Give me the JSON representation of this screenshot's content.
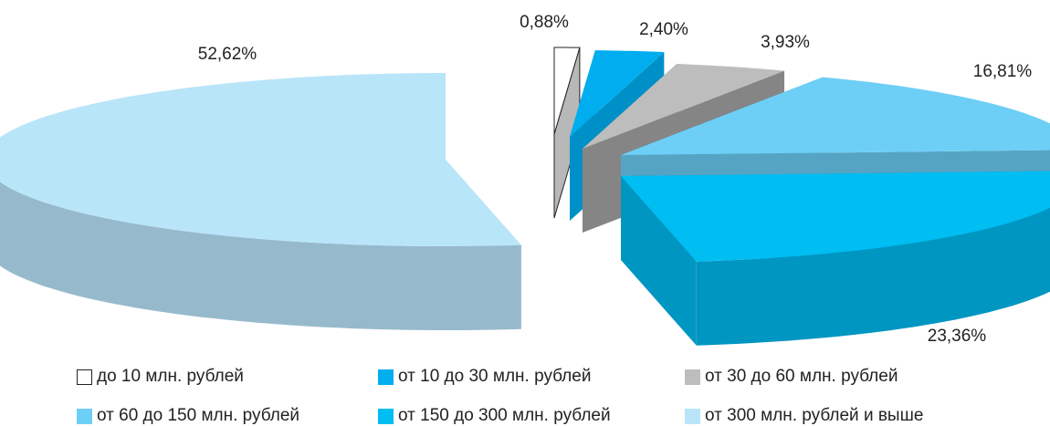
{
  "chart_data": {
    "type": "pie",
    "title": "",
    "slices": [
      {
        "label": "до 10 млн. рублей",
        "value": 0.88,
        "value_label": "0,88%",
        "color": "#ffffff",
        "side_color": "#b8b8b8",
        "outline": true
      },
      {
        "label": "от 10 до 30 млн. рублей",
        "value": 2.4,
        "value_label": "2,40%",
        "color": "#00aeef",
        "side_color": "#0090c8"
      },
      {
        "label": "от 30 до 60 млн. рублей",
        "value": 3.93,
        "value_label": "3,93%",
        "color": "#bdbdbd",
        "side_color": "#858585"
      },
      {
        "label": "от 60 до 150 млн. рублей",
        "value": 16.81,
        "value_label": "16,81%",
        "color": "#6dcff6",
        "side_color": "#56a4c4"
      },
      {
        "label": "от 150 до 300 млн. рублей",
        "value": 23.36,
        "value_label": "23,36%",
        "color": "#00bdf2",
        "side_color": "#0096c2"
      },
      {
        "label": "от 300 млн. рублей и выше",
        "value": 52.62,
        "value_label": "52,62%",
        "color": "#b9e5f9",
        "side_color": "#97b9cc"
      }
    ],
    "legend_placement": "bottom"
  }
}
